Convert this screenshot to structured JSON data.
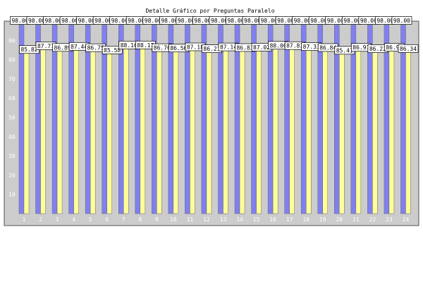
{
  "chart_data": {
    "type": "bar",
    "title": "Detalle Gráfico por Preguntas Paralelo",
    "xlabel": "",
    "ylabel": "",
    "ylim": [
      0,
      100
    ],
    "yticks": [
      10,
      20,
      30,
      40,
      50,
      60,
      70,
      80,
      90
    ],
    "grid": false,
    "legend": "none",
    "categories": [
      "1",
      "2",
      "3",
      "4",
      "5",
      "6",
      "7",
      "8",
      "9",
      "10",
      "11",
      "12",
      "13",
      "14",
      "15",
      "16",
      "17",
      "18",
      "19",
      "20",
      "21",
      "22",
      "23",
      "24"
    ],
    "series": [
      {
        "color": "#8080f0",
        "values": [
          98.0,
          98.0,
          98.0,
          98.0,
          98.0,
          98.0,
          98.0,
          98.0,
          98.0,
          98.0,
          98.0,
          98.0,
          98.0,
          98.0,
          98.0,
          98.0,
          98.0,
          98.0,
          98.0,
          98.0,
          98.0,
          98.0,
          98.0,
          98.0
        ],
        "labels": [
          "98.00",
          "98.00",
          "98.00",
          "98.00",
          "98.00",
          "98.00",
          "98.00",
          "98.00",
          "98.00",
          "98.00",
          "98.00",
          "98.00",
          "98.00",
          "98.00",
          "98.00",
          "98.00",
          "98.00",
          "98.00",
          "98.00",
          "98.00",
          "98.00",
          "98.00",
          "98.00",
          "98.00"
        ]
      },
      {
        "color": "#ffff99",
        "values": [
          85.82,
          87.71,
          86.89,
          87.44,
          86.75,
          85.58,
          88.16,
          88.17,
          86.76,
          86.56,
          87.18,
          86.21,
          87.14,
          86.83,
          87.02,
          88.0,
          87.83,
          87.33,
          86.84,
          85.41,
          86.91,
          86.22,
          86.98,
          86.34
        ],
        "labels": [
          "85.82",
          "87.71",
          "86.89",
          "87.44",
          "86.75",
          "85.58",
          "88.16",
          "88.17",
          "86.76",
          "86.56",
          "87.18",
          "86.21",
          "87.14",
          "86.83",
          "87.02",
          "88.00",
          "87.83",
          "87.33",
          "86.84",
          "85.41",
          "86.91",
          "86.22",
          "86.98",
          "86.34"
        ]
      }
    ]
  },
  "colors": {
    "plot_background": "#cccccc",
    "page_background": "#ffffff",
    "frame": "#555555",
    "bar_outline": "#666666",
    "label_box_fill": "#ffffff",
    "label_box_stroke": "#000000"
  }
}
